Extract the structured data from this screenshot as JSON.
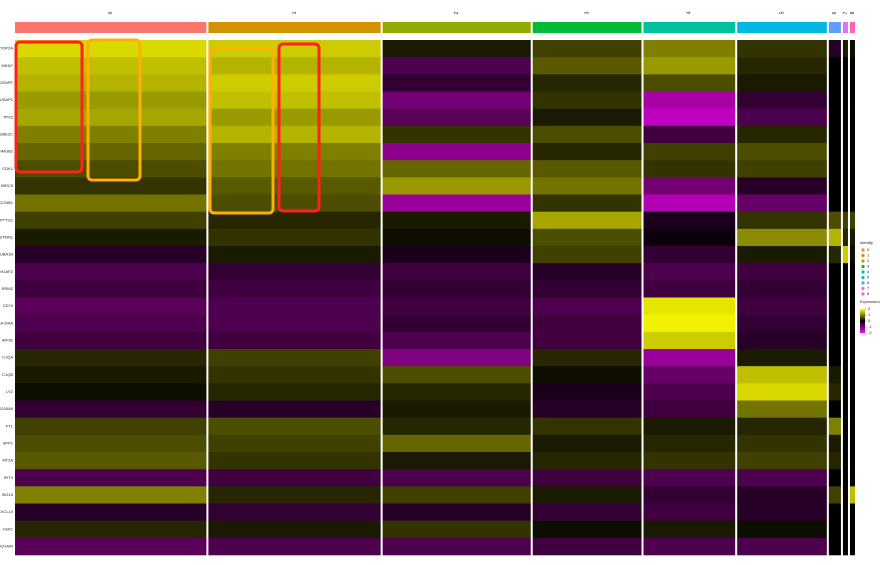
{
  "chart_data": {
    "type": "heatmap",
    "categories": [
      "0",
      "1",
      "2",
      "3",
      "4",
      "5",
      "6",
      "7",
      "8"
    ],
    "cluster_sizes": [
      190,
      171,
      147,
      108,
      91,
      89,
      12,
      5,
      5
    ],
    "cluster_colors": [
      "#f8766d",
      "#d39200",
      "#93aa00",
      "#00ba38",
      "#00c19f",
      "#00b9e3",
      "#619cff",
      "#db72fb",
      "#ff61c3"
    ],
    "genes": [
      "TOP2A",
      "MKI67",
      "CENPF",
      "NUSAP1",
      "TPX2",
      "UBE2C",
      "HMGB2",
      "CDK1",
      "BIRC5",
      "CCNB1",
      "PTTG1",
      "STMN1",
      "TUBA1B",
      "H2AFZ",
      "RRM2",
      "CD74",
      "HLA-DRA",
      "APOE",
      "C1QA",
      "C1QB",
      "LYZ",
      "S100A9",
      "FTL",
      "SPP1",
      "MT2A",
      "IFIT3",
      "ISG15",
      "CXCL10",
      "IGKC",
      "JCHAIN"
    ],
    "values": [
      [
        1.7,
        1.6,
        0.2,
        0.5,
        1.0,
        0.4,
        -0.3,
        0.2,
        0.1
      ],
      [
        1.5,
        1.4,
        -0.6,
        0.7,
        1.2,
        0.3,
        0,
        0,
        0
      ],
      [
        1.4,
        1.6,
        -0.4,
        0.3,
        0.6,
        0.2,
        0,
        0,
        0
      ],
      [
        1.2,
        1.5,
        -0.9,
        0.4,
        -1.3,
        -0.4,
        0,
        0,
        0
      ],
      [
        1.3,
        1.2,
        -0.7,
        0.2,
        -1.5,
        -0.6,
        0,
        0,
        0
      ],
      [
        1.0,
        1.4,
        0.4,
        0.6,
        -0.5,
        0.3,
        0,
        0,
        0
      ],
      [
        0.8,
        1.0,
        -1.1,
        0.3,
        0.5,
        0.6,
        0,
        0,
        0
      ],
      [
        0.6,
        0.9,
        0.8,
        0.7,
        0.4,
        0.5,
        0,
        0,
        0
      ],
      [
        0.4,
        0.7,
        1.2,
        0.9,
        -0.9,
        -0.3,
        0,
        0,
        0
      ],
      [
        0.9,
        0.6,
        -1.2,
        0.4,
        -1.4,
        -0.8,
        0,
        0,
        0
      ],
      [
        0.5,
        0.3,
        0.2,
        1.3,
        -0.2,
        0.4,
        0.6,
        0.5,
        0.5
      ],
      [
        0.2,
        0.4,
        0.1,
        0.6,
        -0.1,
        1.1,
        1.4,
        0.3,
        0.2
      ],
      [
        -0.3,
        0.2,
        -0.2,
        0.5,
        -0.4,
        0.2,
        0.3,
        1.6,
        0.1
      ],
      [
        -0.6,
        -0.4,
        -0.5,
        -0.3,
        -0.6,
        -0.5,
        0,
        0,
        0
      ],
      [
        -0.5,
        -0.5,
        -0.4,
        -0.4,
        -0.5,
        -0.4,
        0,
        0,
        0
      ],
      [
        -0.7,
        -0.6,
        -0.5,
        -0.6,
        1.8,
        -0.5,
        0,
        0,
        0
      ],
      [
        -0.6,
        -0.6,
        -0.4,
        -0.5,
        1.9,
        -0.4,
        0,
        0,
        0
      ],
      [
        -0.5,
        -0.5,
        -0.6,
        -0.5,
        1.6,
        -0.3,
        0,
        0,
        0
      ],
      [
        0.3,
        0.5,
        -1.0,
        0.3,
        -1.2,
        0.2,
        0,
        0,
        0
      ],
      [
        0.2,
        0.4,
        0.6,
        0.1,
        -0.8,
        1.5,
        0.2,
        0,
        0
      ],
      [
        0.1,
        0.3,
        0.3,
        -0.2,
        -0.6,
        1.7,
        0.3,
        0,
        0
      ],
      [
        -0.4,
        -0.3,
        0.2,
        -0.3,
        -0.5,
        0.9,
        0,
        0,
        0
      ],
      [
        0.5,
        0.6,
        0.3,
        0.4,
        0.2,
        0.3,
        1.0,
        0,
        0
      ],
      [
        0.6,
        0.5,
        0.8,
        0.2,
        0.3,
        0.4,
        0.2,
        0,
        0
      ],
      [
        0.7,
        0.4,
        0.2,
        0.3,
        0.4,
        0.5,
        0.3,
        0,
        0
      ],
      [
        -0.6,
        -0.5,
        -0.6,
        -0.5,
        -0.6,
        -0.6,
        0,
        0,
        0
      ],
      [
        1.0,
        0.3,
        0.5,
        0.2,
        -0.4,
        -0.3,
        0.5,
        0,
        1.5
      ],
      [
        -0.3,
        -0.4,
        -0.3,
        -0.4,
        -0.5,
        -0.3,
        0,
        0,
        0
      ],
      [
        0.3,
        0.2,
        0.4,
        0.1,
        0.2,
        0.1,
        0,
        0,
        0
      ],
      [
        -0.7,
        -0.6,
        -0.6,
        -0.5,
        -0.6,
        -0.6,
        0,
        0,
        0
      ]
    ],
    "zlim": [
      -2,
      2
    ],
    "zticks": [
      2,
      1,
      0,
      -1,
      -2
    ],
    "colorscale": [
      "#ff00ff",
      "#000000",
      "#ffff00"
    ],
    "legend_title": "Identity",
    "colorbar_title": "Expression"
  }
}
